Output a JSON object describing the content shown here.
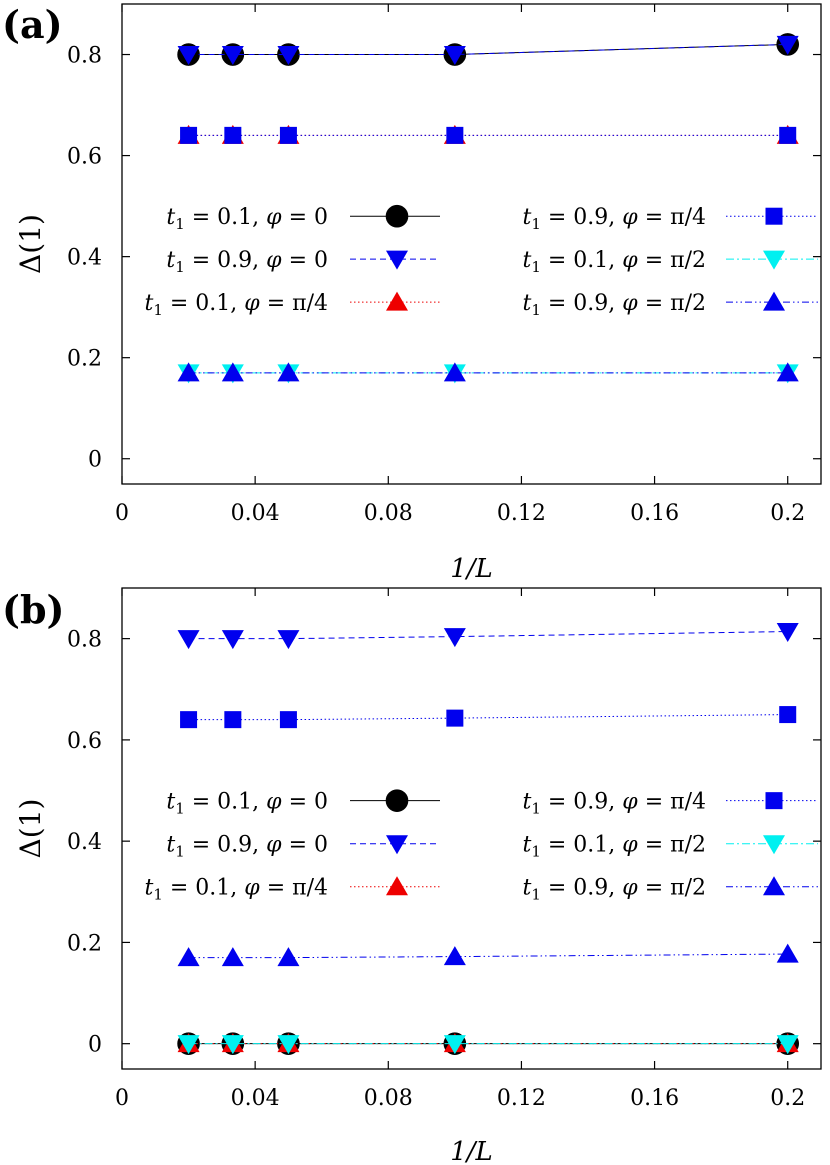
{
  "chart_data": [
    {
      "type": "line",
      "panel_label": "(a)",
      "xlabel": "1/L",
      "ylabel": "Δ(1)",
      "xlim": [
        0,
        0.21
      ],
      "ylim": [
        -0.05,
        0.9
      ],
      "xticks": [
        0,
        0.04,
        0.08,
        0.12,
        0.16,
        0.2
      ],
      "xtick_labels": [
        "0",
        "0.04",
        "0.08",
        "0.12",
        "0.16",
        "0.2"
      ],
      "yticks": [
        0,
        0.2,
        0.4,
        0.6,
        0.8
      ],
      "ytick_labels": [
        "0",
        "0.2",
        "0.4",
        "0.6",
        "0.8"
      ],
      "grid": false,
      "legend_position": "middle",
      "x": [
        0.02,
        0.0333,
        0.05,
        0.1,
        0.2
      ],
      "series": [
        {
          "name": "t1 = 0.1, φ = 0",
          "label_t": "0.1",
          "label_phi": "0",
          "marker": "circle",
          "color": "#000000",
          "line": "solid",
          "values": [
            0.8,
            0.8,
            0.8,
            0.8,
            0.82
          ]
        },
        {
          "name": "t1 = 0.9, φ = 0",
          "label_t": "0.9",
          "label_phi": "0",
          "marker": "triangle-down",
          "color": "#0000ee",
          "line": "dashed",
          "values": [
            0.8,
            0.8,
            0.8,
            0.8,
            0.82
          ]
        },
        {
          "name": "t1 = 0.1, φ = π/4",
          "label_t": "0.1",
          "label_phi": "π/4",
          "marker": "triangle-up",
          "color": "#ee0000",
          "line": "dotted",
          "values": [
            0.64,
            0.64,
            0.64,
            0.64,
            0.64
          ]
        },
        {
          "name": "t1 = 0.9, φ = π/4",
          "label_t": "0.9",
          "label_phi": "π/4",
          "marker": "square",
          "color": "#0000ee",
          "line": "dotted",
          "values": [
            0.64,
            0.64,
            0.64,
            0.64,
            0.64
          ]
        },
        {
          "name": "t1 = 0.1, φ = π/2",
          "label_t": "0.1",
          "label_phi": "π/2",
          "marker": "triangle-down",
          "color": "#00f0f0",
          "line": "dashdot",
          "values": [
            0.17,
            0.17,
            0.17,
            0.17,
            0.17
          ]
        },
        {
          "name": "t1 = 0.9, φ = π/2",
          "label_t": "0.9",
          "label_phi": "π/2",
          "marker": "triangle-up",
          "color": "#0000ee",
          "line": "dashdotdot",
          "values": [
            0.17,
            0.17,
            0.17,
            0.17,
            0.17
          ]
        }
      ]
    },
    {
      "type": "line",
      "panel_label": "(b)",
      "xlabel": "1/L",
      "ylabel": "Δ(1)",
      "xlim": [
        0,
        0.21
      ],
      "ylim": [
        -0.05,
        0.9
      ],
      "xticks": [
        0,
        0.04,
        0.08,
        0.12,
        0.16,
        0.2
      ],
      "xtick_labels": [
        "0",
        "0.04",
        "0.08",
        "0.12",
        "0.16",
        "0.2"
      ],
      "yticks": [
        0,
        0.2,
        0.4,
        0.6,
        0.8
      ],
      "ytick_labels": [
        "0",
        "0.2",
        "0.4",
        "0.6",
        "0.8"
      ],
      "grid": false,
      "legend_position": "middle",
      "x": [
        0.02,
        0.0333,
        0.05,
        0.1,
        0.2
      ],
      "series": [
        {
          "name": "t1 = 0.1, φ = 0",
          "label_t": "0.1",
          "label_phi": "0",
          "marker": "circle",
          "color": "#000000",
          "line": "solid",
          "values": [
            0,
            0,
            0,
            0,
            0
          ]
        },
        {
          "name": "t1 = 0.9, φ = 0",
          "label_t": "0.9",
          "label_phi": "0",
          "marker": "triangle-down",
          "color": "#0000ee",
          "line": "dashed",
          "values": [
            0.8,
            0.8,
            0.8,
            0.804,
            0.814
          ]
        },
        {
          "name": "t1 = 0.1, φ = π/4",
          "label_t": "0.1",
          "label_phi": "π/4",
          "marker": "triangle-up",
          "color": "#ee0000",
          "line": "dotted",
          "values": [
            0,
            0,
            0,
            0,
            0
          ]
        },
        {
          "name": "t1 = 0.9, φ = π/4",
          "label_t": "0.9",
          "label_phi": "π/4",
          "marker": "square",
          "color": "#0000ee",
          "line": "dotted",
          "values": [
            0.64,
            0.64,
            0.64,
            0.643,
            0.65
          ]
        },
        {
          "name": "t1 = 0.1, φ = π/2",
          "label_t": "0.1",
          "label_phi": "π/2",
          "marker": "triangle-down",
          "color": "#00f0f0",
          "line": "dashdot",
          "values": [
            0,
            0,
            0,
            0,
            0
          ]
        },
        {
          "name": "t1 = 0.9, φ = π/2",
          "label_t": "0.9",
          "label_phi": "π/2",
          "marker": "triangle-up",
          "color": "#0000ee",
          "line": "dashdotdot",
          "values": [
            0.17,
            0.17,
            0.17,
            0.172,
            0.177
          ]
        }
      ]
    }
  ]
}
